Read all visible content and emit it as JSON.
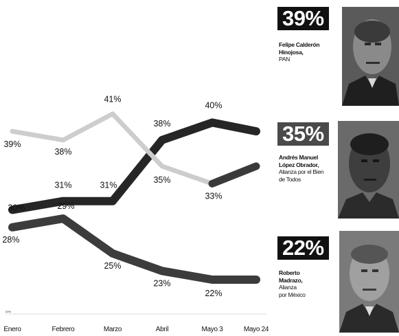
{
  "chart_data": {
    "type": "line",
    "categories": [
      "Enero",
      "Febrero",
      "Marzo",
      "Abril",
      "Mayo 3",
      "Mayo 24"
    ],
    "ylim": [
      20,
      42
    ],
    "axis_tag": "20%",
    "series": [
      {
        "name": "Felipe Calderón Hinojosa, PAN",
        "color": "#262626",
        "values": [
          30,
          31,
          31,
          38,
          40,
          39
        ],
        "labels": [
          "30%",
          "31%",
          "31%",
          "38%",
          "40%",
          ""
        ]
      },
      {
        "name": "Andrés Manuel López Obrador, Alianza por el Bien de Todos",
        "color": "#cdcdcd",
        "dashed_segments": 5,
        "values": [
          39,
          38,
          41,
          35,
          33,
          35
        ],
        "labels": [
          "39%",
          "38%",
          "41%",
          "35%",
          "33%",
          ""
        ]
      },
      {
        "name": "Roberto Madrazo, Alianza por México",
        "color": "#3c3c3c",
        "values": [
          28,
          29,
          25,
          23,
          22,
          22
        ],
        "labels": [
          "28%",
          "29%",
          "25%",
          "23%",
          "22%",
          ""
        ]
      }
    ]
  },
  "candidates": [
    {
      "percent": "39%",
      "name_lines": [
        "Felipe Calderón",
        "Hinojosa,"
      ],
      "party_lines": [
        "PAN"
      ]
    },
    {
      "percent": "35%",
      "name_lines": [
        "Andrés Manuel",
        "López Obrador,"
      ],
      "party_lines": [
        "Alianza por el Bien",
        "de Todos"
      ]
    },
    {
      "percent": "22%",
      "name_lines": [
        "Roberto",
        "Madrazo,"
      ],
      "party_lines": [
        "Alianza",
        "por México"
      ]
    }
  ]
}
